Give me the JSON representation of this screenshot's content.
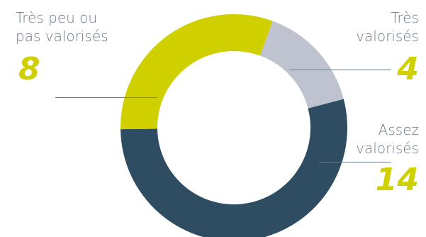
{
  "chart_data": {
    "type": "pie",
    "variant": "donut",
    "slices": [
      {
        "label_line1": "Très",
        "label_line2": "valorisés",
        "value": 4,
        "color": "#BFC3CF"
      },
      {
        "label_line1": "Assez",
        "label_line2": "valorisés",
        "value": 14,
        "color": "#2E4D63"
      },
      {
        "label_line1": "Très peu ou",
        "label_line2": "pas valorisés",
        "value": 8,
        "color": "#D0D000"
      }
    ],
    "value_color": "#D0D000",
    "start_angle_deg": 20,
    "direction": "clockwise"
  }
}
